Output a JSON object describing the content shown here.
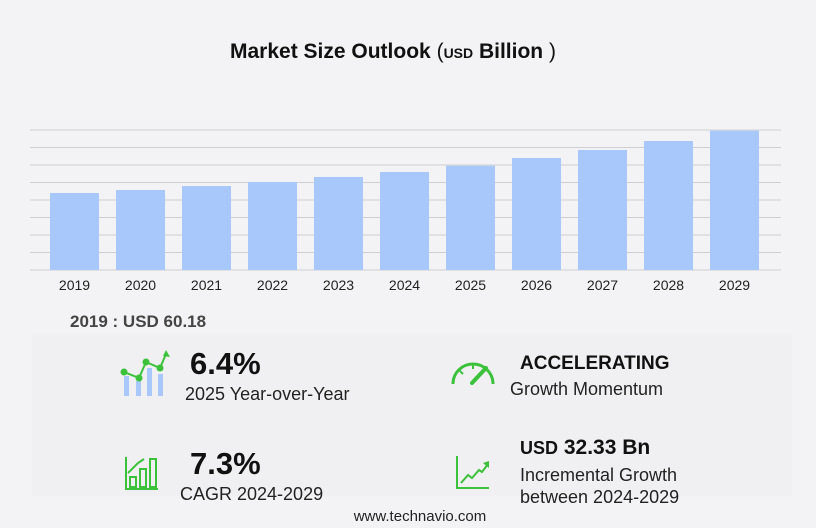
{
  "title": {
    "main": "Market Size Outlook",
    "open": "(",
    "unit": "USD",
    "unit_word": "Billion",
    "close": ")"
  },
  "chart_data": {
    "type": "bar",
    "title": "Market Size Outlook (USD Billion)",
    "categories": [
      "2019",
      "2020",
      "2021",
      "2022",
      "2023",
      "2024",
      "2025",
      "2026",
      "2027",
      "2028",
      "2029"
    ],
    "values": [
      60.18,
      62.5,
      65.6,
      68.8,
      72.7,
      76.6,
      81.5,
      87.5,
      93.8,
      100.8,
      108.9
    ],
    "ylim": [
      0,
      109.4
    ],
    "grid": true,
    "bar_color": "#a8c8fb"
  },
  "base_label": "2019 : USD  60.18",
  "kpis": {
    "yoy": {
      "value": "6.4%",
      "label": "2025 Year-over-Year"
    },
    "momentum": {
      "value": "ACCELERATING",
      "label": "Growth Momentum"
    },
    "cagr": {
      "value": "7.3%",
      "label": "CAGR 2024-2029"
    },
    "incremental": {
      "prefix": "USD",
      "value": "32.33 Bn",
      "label1": "Incremental Growth",
      "label2": "between 2024-2029"
    }
  },
  "icons": {
    "yoy": "trend-bars-icon",
    "momentum": "speedometer-icon",
    "cagr": "growth-chart-icon",
    "incremental": "line-chart-icon"
  },
  "accent": "#3cc13b",
  "footer": "www.technavio.com"
}
